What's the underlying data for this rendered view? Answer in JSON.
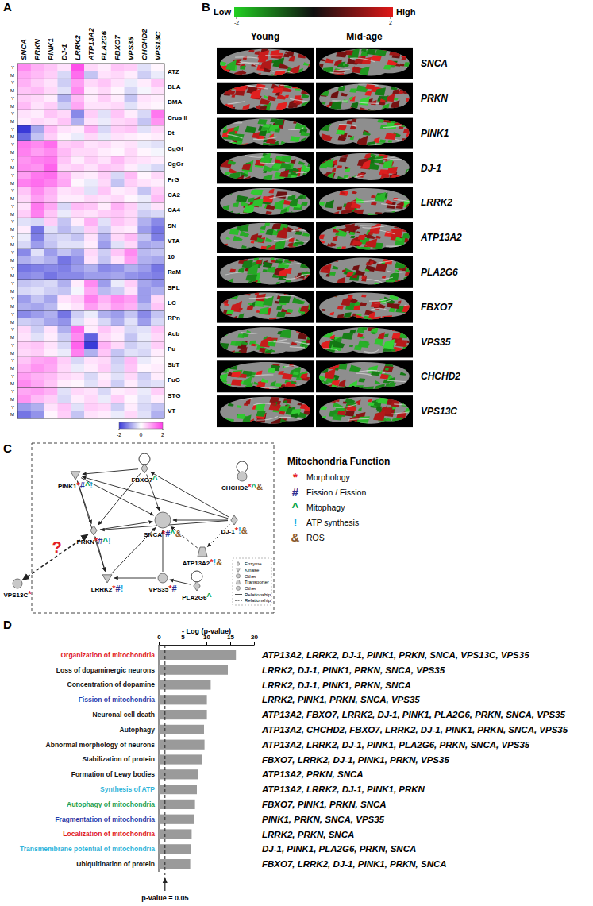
{
  "panel_labels": [
    "A",
    "B",
    "C",
    "D"
  ],
  "chart_data": [
    {
      "type": "heatmap",
      "x": [
        "SNCA",
        "PRKN",
        "PINK1",
        "DJ-1",
        "LRRK2",
        "ATP13A2",
        "PLA2G6",
        "FBXO7",
        "VPS35",
        "CHCHD2",
        "VPS13C"
      ],
      "y_groups": [
        "ATZ",
        "BLA",
        "BMA",
        "Crus II",
        "Dt",
        "CgGf",
        "CgGr",
        "PrG",
        "CA2",
        "CA4",
        "SN",
        "VTA",
        "10",
        "RaM",
        "SPL",
        "LC",
        "RPn",
        "Acb",
        "Pu",
        "SbT",
        "FuG",
        "STG",
        "VT"
      ],
      "y_subgroups": [
        "Y",
        "M"
      ],
      "values": [
        [
          1.2,
          0.8,
          0.6,
          0.3,
          1.8,
          0.4,
          0.2,
          0.6,
          0.5,
          -0.3,
          0.1
        ],
        [
          0.9,
          0.7,
          0.5,
          -0.4,
          1.5,
          -0.6,
          0.3,
          0.4,
          0.2,
          -0.5,
          -0.2
        ],
        [
          0.8,
          0.5,
          0.3,
          -0.5,
          1.0,
          0.4,
          0.6,
          0.3,
          -0.2,
          0.2,
          0.6
        ],
        [
          0.6,
          0.7,
          0.4,
          -0.3,
          1.2,
          0.2,
          0.4,
          0.1,
          -0.4,
          -0.1,
          0.3
        ],
        [
          0.5,
          0.4,
          0.2,
          -0.8,
          0.7,
          0.2,
          0.5,
          0.2,
          -0.6,
          0.3,
          0.2
        ],
        [
          0.7,
          0.3,
          0.5,
          -0.5,
          0.9,
          0.3,
          0.3,
          0.4,
          -0.3,
          0.2,
          0.1
        ],
        [
          0.3,
          0.2,
          0.6,
          0.4,
          -1.2,
          0.5,
          -0.3,
          0.6,
          0.2,
          -0.4,
          1.4
        ],
        [
          0.2,
          0.4,
          0.3,
          0.6,
          -0.8,
          0.3,
          -0.2,
          0.4,
          0.5,
          -0.6,
          1.1
        ],
        [
          -2.0,
          -0.9,
          0.7,
          0.3,
          0.2,
          0.8,
          -0.4,
          0.5,
          0.6,
          -0.3,
          0.4
        ],
        [
          -1.5,
          -0.6,
          0.5,
          0.1,
          -0.2,
          0.4,
          -0.2,
          0.3,
          0.2,
          0.1,
          0.2
        ],
        [
          1.4,
          1.2,
          1.5,
          0.5,
          0.6,
          0.3,
          0.4,
          0.2,
          0.3,
          -0.2,
          -0.3
        ],
        [
          1.3,
          1.0,
          1.2,
          0.7,
          0.4,
          0.4,
          0.2,
          0.1,
          0.4,
          0.1,
          -0.1
        ],
        [
          1.1,
          1.3,
          1.4,
          0.6,
          0.2,
          0.5,
          0.3,
          0.7,
          0.4,
          0.3,
          0.2
        ],
        [
          1.2,
          1.1,
          1.6,
          0.4,
          0.5,
          0.3,
          0.6,
          0.5,
          0.2,
          -0.2,
          -0.4
        ],
        [
          1.0,
          1.4,
          1.5,
          0.8,
          0.3,
          0.2,
          0.5,
          -0.4,
          0.7,
          0.1,
          0.4
        ],
        [
          1.3,
          1.5,
          1.3,
          0.9,
          0.1,
          -0.2,
          0.4,
          -0.6,
          0.5,
          0.3,
          0.2
        ],
        [
          0.6,
          1.2,
          0.8,
          0.3,
          0.4,
          -0.3,
          0.6,
          0.2,
          0.3,
          -0.6,
          0.5
        ],
        [
          0.4,
          1.0,
          0.7,
          0.2,
          0.2,
          0.4,
          0.3,
          0.4,
          0.1,
          -0.2,
          0.7
        ],
        [
          0.3,
          1.4,
          0.9,
          -0.4,
          0.7,
          0.6,
          0.2,
          0.8,
          0.5,
          -0.3,
          0.3
        ],
        [
          0.5,
          1.3,
          0.6,
          -0.2,
          0.4,
          0.3,
          0.5,
          0.6,
          0.4,
          -0.5,
          -0.4
        ],
        [
          -0.3,
          -0.4,
          0.5,
          -0.6,
          0.2,
          0.8,
          -0.3,
          0.6,
          0.4,
          -0.8,
          -1.2
        ],
        [
          0.2,
          -1.4,
          -0.3,
          -0.7,
          -0.4,
          0.5,
          -0.5,
          0.3,
          0.2,
          -1.0,
          -1.4
        ],
        [
          -0.2,
          -1.3,
          -0.5,
          -0.4,
          -0.6,
          0.3,
          -0.8,
          0.4,
          0.7,
          -0.6,
          -1.3
        ],
        [
          -0.4,
          -1.0,
          -0.6,
          -0.3,
          -0.3,
          0.2,
          -1.0,
          -0.3,
          0.4,
          -0.9,
          -0.8
        ],
        [
          -1.2,
          -0.3,
          -1.0,
          -0.6,
          -0.9,
          0.4,
          -0.5,
          0.6,
          1.2,
          -0.7,
          -0.6
        ],
        [
          -0.8,
          -0.6,
          -0.8,
          -1.4,
          -1.1,
          0.3,
          -0.6,
          0.3,
          1.0,
          -0.8,
          -0.9
        ],
        [
          -1.4,
          -1.3,
          -1.2,
          -1.3,
          -1.0,
          -0.8,
          -1.2,
          -1.1,
          -0.8,
          -1.0,
          -1.4
        ],
        [
          -1.2,
          -1.1,
          -1.4,
          -1.2,
          -1.2,
          -1.0,
          -1.0,
          -0.9,
          -1.1,
          -1.2,
          -1.3
        ],
        [
          -0.6,
          -0.5,
          -0.4,
          -0.8,
          0.2,
          1.2,
          -1.0,
          -0.2,
          0.5,
          -0.9,
          -1.1
        ],
        [
          -0.4,
          -0.3,
          -0.5,
          -0.6,
          -0.1,
          0.9,
          -0.7,
          -0.5,
          0.3,
          -1.0,
          -0.8
        ],
        [
          -1.0,
          -0.6,
          -0.9,
          0.3,
          0.5,
          1.3,
          0.8,
          1.2,
          1.0,
          -1.0,
          0.4
        ],
        [
          -0.8,
          -0.9,
          -0.7,
          0.1,
          0.3,
          1.0,
          0.6,
          1.0,
          0.8,
          -0.7,
          0.6
        ],
        [
          -1.2,
          -1.0,
          -0.8,
          -1.4,
          -0.5,
          -0.2,
          -0.8,
          -1.0,
          -0.6,
          -1.2,
          -0.6
        ],
        [
          -0.5,
          -0.6,
          -0.9,
          -1.1,
          -0.3,
          0.2,
          -0.4,
          -0.8,
          -0.3,
          -1.0,
          -0.4
        ],
        [
          0.4,
          -0.5,
          0.3,
          -0.8,
          1.5,
          0.2,
          0.6,
          0.3,
          -0.4,
          -0.3,
          0.6
        ],
        [
          0.3,
          -0.3,
          0.2,
          -0.5,
          1.2,
          -1.6,
          0.4,
          0.2,
          -0.6,
          -0.2,
          0.4
        ],
        [
          0.5,
          0.6,
          0.3,
          -0.4,
          1.6,
          -2.0,
          0.8,
          0.4,
          -0.5,
          -0.3,
          0.5
        ],
        [
          0.4,
          0.5,
          0.2,
          -0.2,
          1.3,
          -0.8,
          0.6,
          -0.6,
          -0.3,
          -0.4,
          0.2
        ],
        [
          0.6,
          0.9,
          1.0,
          0.5,
          -0.4,
          0.3,
          0.4,
          -0.5,
          0.7,
          -0.2,
          0.1
        ],
        [
          0.8,
          1.1,
          0.9,
          0.4,
          -0.2,
          0.2,
          0.5,
          -0.4,
          0.6,
          0.1,
          0.2
        ],
        [
          1.0,
          0.8,
          0.7,
          0.4,
          0.3,
          -0.4,
          0.2,
          -0.3,
          0.4,
          -0.5,
          0.2
        ],
        [
          1.2,
          0.9,
          0.6,
          0.2,
          0.1,
          -0.3,
          0.3,
          -0.5,
          0.2,
          -0.4,
          -0.3
        ],
        [
          0.9,
          1.0,
          0.8,
          -0.3,
          0.4,
          0.3,
          -0.4,
          0.2,
          0.3,
          -0.2,
          0.5
        ],
        [
          1.1,
          0.7,
          0.5,
          -0.4,
          0.2,
          0.4,
          -0.2,
          0.5,
          0.1,
          -0.3,
          0.2
        ],
        [
          -1.0,
          -0.8,
          0.3,
          0.6,
          -0.3,
          0.5,
          0.4,
          -0.5,
          0.2,
          -0.4,
          -0.6
        ],
        [
          -1.4,
          -1.1,
          0.1,
          0.5,
          -0.6,
          0.3,
          0.2,
          -0.2,
          0.4,
          -0.3,
          -0.8
        ]
      ],
      "colorbar": {
        "range": [
          -2,
          2
        ],
        "ticks": [
          -2,
          0,
          2
        ],
        "colors": [
          "#3a3ad8",
          "#ffffff",
          "#ff3ce8"
        ]
      }
    },
    {
      "type": "bar",
      "orientation": "horizontal",
      "title": "- Log (p-value)",
      "categories": [
        "Organization of mitochondria",
        "Loss of dopaminergic neurons",
        "Concentration of dopamine",
        "Fission of mitochondria",
        "Neuronal cell death",
        "Autophagy",
        "Abnormal morphology of neurons",
        "Stabilization of protein",
        "Formation of Lewy bodies",
        "Synthesis of ATP",
        "Autophagy of mitochondria",
        "Fragmentation of mitochondria",
        "Localization of mitochondria",
        "Transmembrane potential of mitochondria",
        "Ubiquitination of protein"
      ],
      "values": [
        16.2,
        14.5,
        10.9,
        10.1,
        10.1,
        9.5,
        9.6,
        9.0,
        8.3,
        8.0,
        7.6,
        7.4,
        6.9,
        6.7,
        6.6
      ],
      "color": "#9a9a9a",
      "xlim": [
        0,
        20
      ],
      "xticks": [
        0,
        5,
        10,
        15,
        20
      ],
      "annotations": [
        "ATP13A2, LRRK2, DJ-1, PINK1, PRKN, SNCA, VPS13C, VPS35",
        "LRRK2, DJ-1, PINK1, PRKN, SNCA, VPS35",
        "LRRK2, DJ-1, PINK1, PRKN, SNCA",
        "LRRK2, PINK1, PRKN, SNCA, VPS35",
        "ATP13A2, FBXO7, LRRK2, DJ-1, PINK1, PLA2G6, PRKN, SNCA, VPS35",
        "ATP13A2, CHCHD2, FBXO7, LRRK2, DJ-1, PINK1, PRKN, SNCA, VPS35",
        "ATP13A2, LRRK2, DJ-1, PINK1, PLA2G6, PRKN, SNCA, VPS35",
        "FBXO7, LRRK2, DJ-1, PINK1, PRKN, VPS35",
        "ATP13A2, PRKN, SNCA",
        "ATP13A2, LRRK2, DJ-1, PINK1, PRKN",
        "FBXO7, PINK1, PRKN, SNCA",
        "PINK1, PRKN, SNCA, VPS35",
        "LRRK2, PRKN, SNCA",
        "DJ-1, PINK1, PLA2G6, PRKN, SNCA",
        "FBXO7, LRRK2, DJ-1, PINK1, PRKN, SNCA"
      ],
      "reference_line": {
        "value": 1.3,
        "label": "p-value = 0.05"
      }
    }
  ],
  "expression_maps": {
    "colorbar": {
      "low_label": "Low",
      "high_label": "High",
      "range": [
        -2,
        2
      ],
      "ticks": [
        -2,
        2
      ],
      "colors": [
        "#22d022",
        "#101010",
        "#e01818"
      ]
    },
    "columns": [
      "Young",
      "Mid-age"
    ],
    "genes": [
      "SNCA",
      "PRKN",
      "PINK1",
      "DJ-1",
      "LRRK2",
      "ATP13A2",
      "PLA2G6",
      "FBXO7",
      "VPS35",
      "CHCHD2",
      "VPS13C"
    ]
  },
  "network": {
    "nodes": [
      {
        "id": "PINK1",
        "type": "Kinase",
        "functions": [
          "Morphology",
          "Fission / Fission",
          "Mitophagy",
          "ATP synthesis"
        ]
      },
      {
        "id": "FBXO7",
        "type": "Enzyme",
        "functions": [
          "Mitophagy"
        ]
      },
      {
        "id": "CHCHD2",
        "type": "Other",
        "functions": [
          "Morphology",
          "Mitophagy",
          "ROS"
        ]
      },
      {
        "id": "SNCA",
        "type": "Other",
        "functions": [
          "Morphology",
          "Fission / Fission",
          "Mitophagy",
          "ROS"
        ]
      },
      {
        "id": "DJ-1",
        "type": "Enzyme",
        "functions": [
          "Morphology",
          "ATP synthesis",
          "ROS"
        ]
      },
      {
        "id": "PRKN",
        "type": "Enzyme",
        "functions": [
          "Morphology",
          "Fission / Fission",
          "Mitophagy",
          "ATP synthesis"
        ]
      },
      {
        "id": "ATP13A2",
        "type": "Transporter",
        "functions": [
          "Morphology",
          "ATP synthesis",
          "ROS"
        ]
      },
      {
        "id": "LRRK2",
        "type": "Kinase",
        "functions": [
          "Morphology",
          "Fission / Fission",
          "ATP synthesis"
        ]
      },
      {
        "id": "VPS35",
        "type": "Other",
        "functions": [
          "Morphology",
          "Fission / Fission"
        ]
      },
      {
        "id": "PLA2G6",
        "type": "Enzyme",
        "functions": [
          "Mitophagy"
        ]
      },
      {
        "id": "VPS13C",
        "type": "Other",
        "functions": [
          "Morphology"
        ]
      }
    ],
    "edges": [
      {
        "source": "PINK1",
        "target": "PRKN",
        "style": "solid"
      },
      {
        "source": "PINK1",
        "target": "SNCA",
        "style": "solid"
      },
      {
        "source": "PINK1",
        "target": "LRRK2",
        "style": "solid"
      },
      {
        "source": "FBXO7",
        "target": "PINK1",
        "style": "solid"
      },
      {
        "source": "FBXO7",
        "target": "PRKN",
        "style": "solid"
      },
      {
        "source": "FBXO7",
        "target": "SNCA",
        "style": "solid"
      },
      {
        "source": "FBXO7",
        "target": "FBXO7",
        "style": "solid"
      },
      {
        "source": "CHCHD2",
        "target": "CHCHD2",
        "style": "solid"
      },
      {
        "source": "DJ-1",
        "target": "FBXO7",
        "style": "solid"
      },
      {
        "source": "DJ-1",
        "target": "PINK1",
        "style": "solid"
      },
      {
        "source": "DJ-1",
        "target": "PRKN",
        "style": "solid"
      },
      {
        "source": "DJ-1",
        "target": "SNCA",
        "style": "solid"
      },
      {
        "source": "PRKN",
        "target": "SNCA",
        "style": "solid"
      },
      {
        "source": "PRKN",
        "target": "LRRK2",
        "style": "solid"
      },
      {
        "source": "LRRK2",
        "target": "SNCA",
        "style": "solid"
      },
      {
        "source": "VPS35",
        "target": "LRRK2",
        "style": "solid"
      },
      {
        "source": "VPS35",
        "target": "SNCA",
        "style": "solid"
      },
      {
        "source": "ATP13A2",
        "target": "SNCA",
        "style": "dashed"
      },
      {
        "source": "DJ-1",
        "target": "ATP13A2",
        "style": "dashed"
      },
      {
        "source": "PLA2G6",
        "target": "VPS35",
        "style": "solid"
      },
      {
        "source": "PLA2G6",
        "target": "PLA2G6",
        "style": "solid"
      },
      {
        "source": "VPS13C",
        "target": "PRKN",
        "style": "dashed",
        "label": "?"
      }
    ],
    "legend": {
      "title": "Mitochondria Function",
      "items": [
        {
          "symbol": "*",
          "label": "Morphology",
          "color": "#e41e26"
        },
        {
          "symbol": "#",
          "label": "Fission / Fission",
          "color": "#2e3192"
        },
        {
          "symbol": "^",
          "label": "Mitophagy",
          "color": "#00a651"
        },
        {
          "symbol": "!",
          "label": "ATP synthesis",
          "color": "#29abe2"
        },
        {
          "symbol": "&",
          "label": "ROS",
          "color": "#8b5a2b"
        }
      ]
    },
    "shape_legend": [
      {
        "label": "Enzyme",
        "shape": "diamond"
      },
      {
        "label": "Kinase",
        "shape": "triangle"
      },
      {
        "label": "Other",
        "shape": "circle"
      },
      {
        "label": "Transporter",
        "shape": "trapezoid"
      },
      {
        "label": "Other",
        "shape": "circle"
      },
      {
        "label": "Relationship",
        "shape": "solid"
      },
      {
        "label": "Relationship",
        "shape": "dashed"
      }
    ]
  }
}
